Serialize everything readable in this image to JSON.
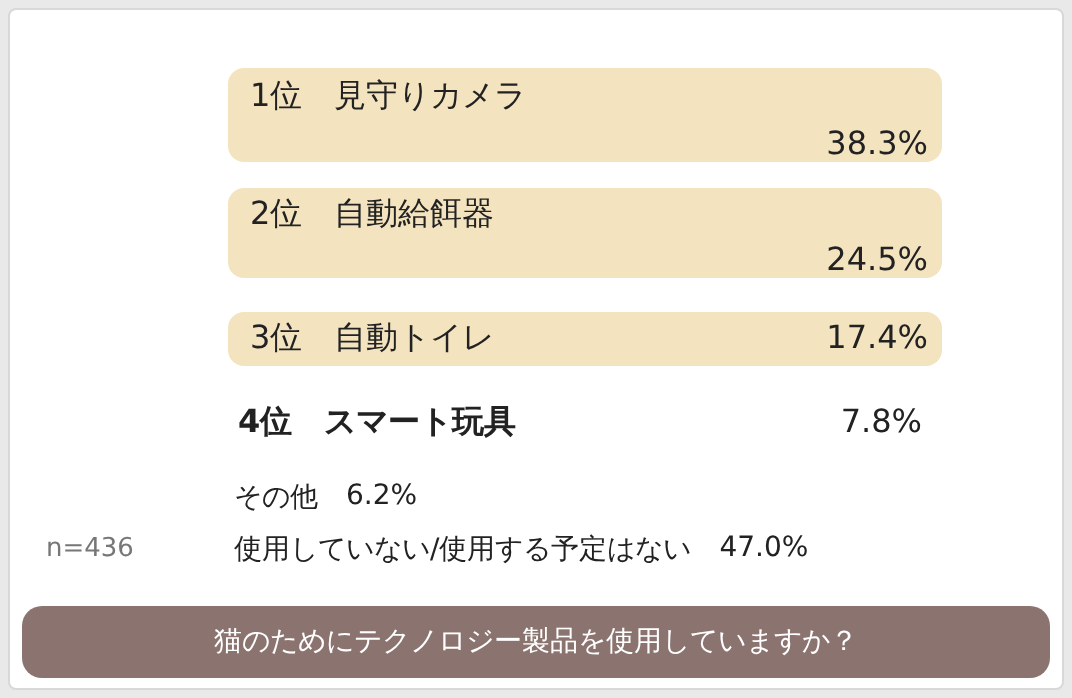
{
  "chart_data": {
    "type": "other",
    "title": "猫のためにテクノロジー製品を使用していますか？",
    "categories": [
      "1位　見守りカメラ",
      "2位　自動給餌器",
      "3位　自動トイレ",
      "4位　スマート玩具",
      "その他",
      "使用していない/使用する予定はない"
    ],
    "values": [
      38.3,
      24.5,
      17.4,
      7.8,
      6.2,
      47.0
    ],
    "value_labels": [
      "38.3%",
      "24.5%",
      "17.4%",
      "7.8%",
      "6.2%",
      "47.0%"
    ],
    "colors": [
      "#f3e3bf",
      "#f3e3bf",
      "#f3e3bf",
      "#ffffff",
      "#ffffff",
      "#ffffff"
    ],
    "annotations": [
      "n=436"
    ]
  }
}
